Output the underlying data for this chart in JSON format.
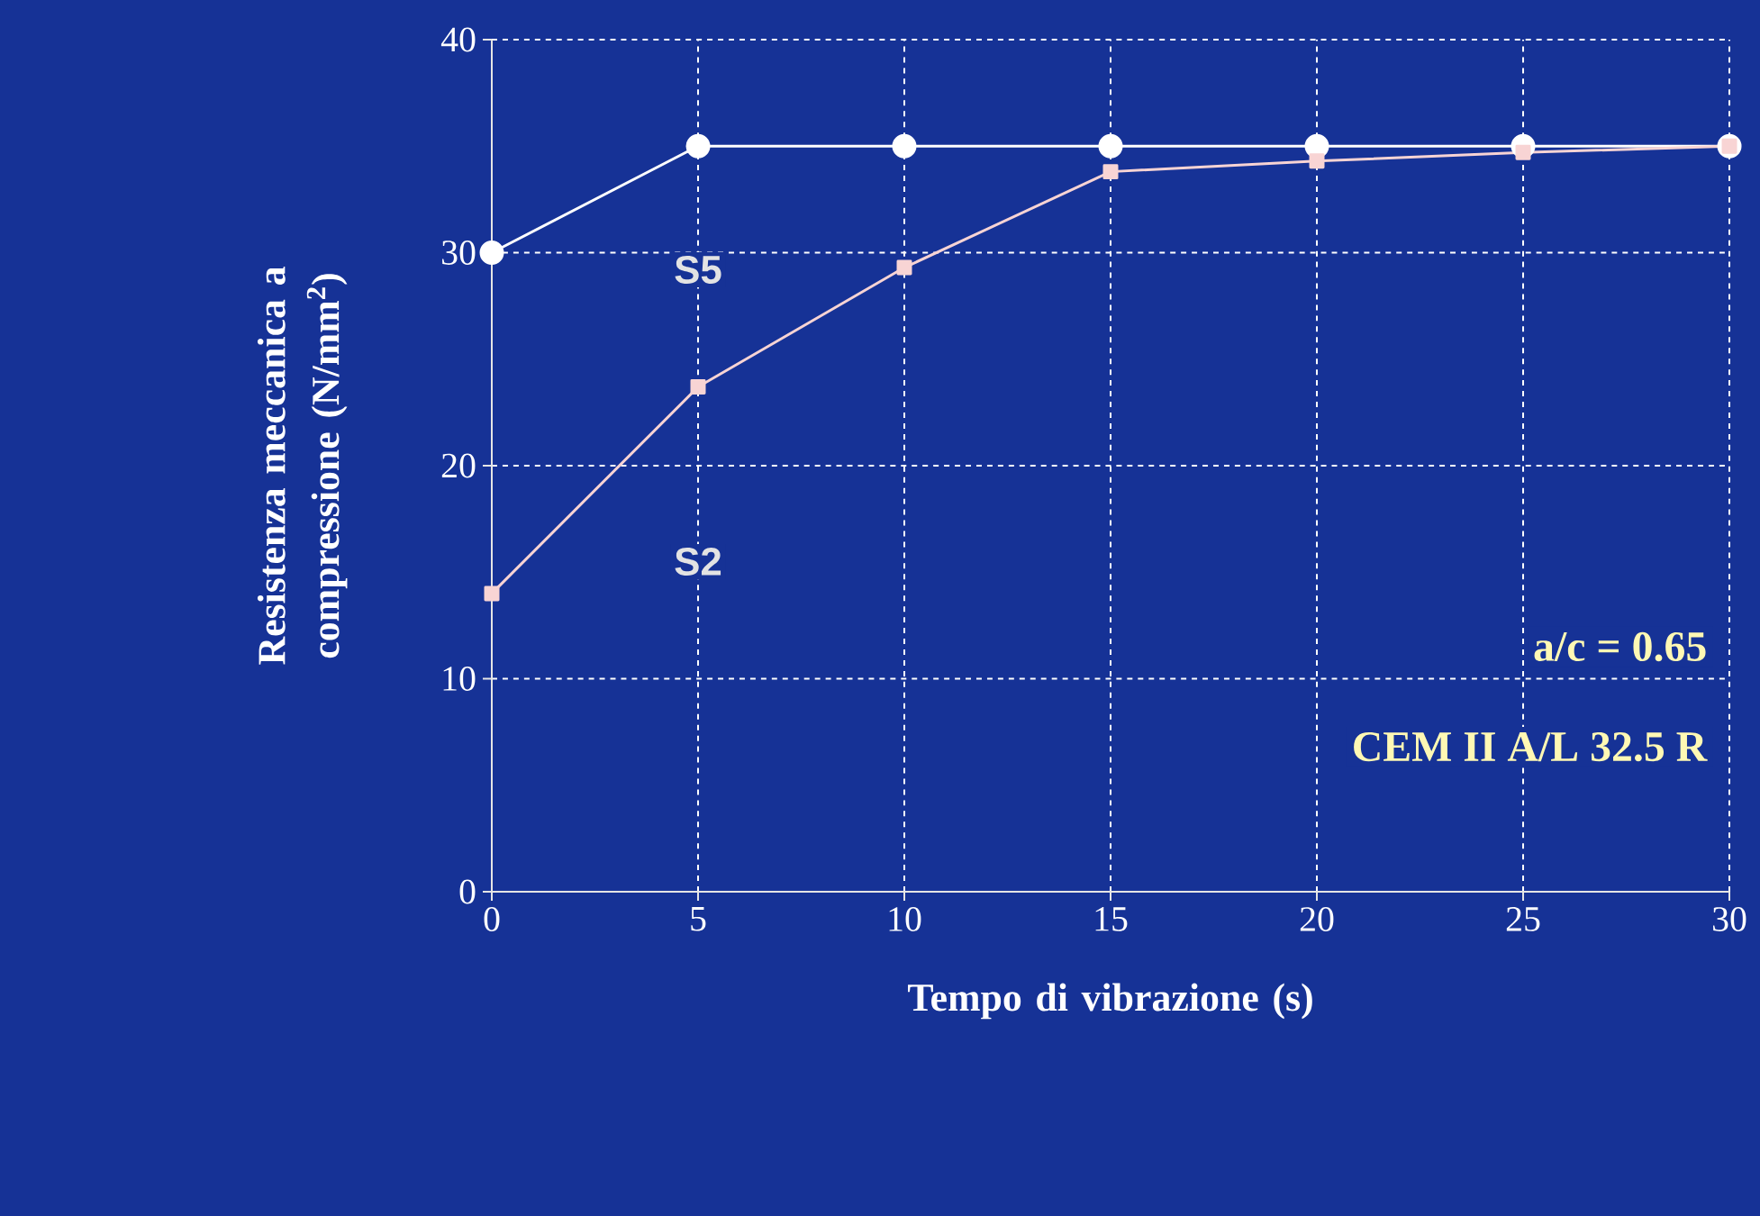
{
  "chart_data": {
    "type": "line",
    "xlabel": "Tempo di vibrazione (s)",
    "ylabel": "Resistenza meccanica a compressione (N/mm$^{2}$)",
    "x": [
      0,
      5,
      10,
      15,
      20,
      25,
      30
    ],
    "series": [
      {
        "name": "S5",
        "color": "#ffffff",
        "marker": "circle",
        "values": [
          30,
          35,
          35,
          35,
          35,
          35,
          35
        ]
      },
      {
        "name": "S2",
        "color": "#f8d4d4",
        "marker": "square",
        "values": [
          14,
          23.7,
          29.3,
          33.8,
          34.3,
          34.7,
          35
        ]
      }
    ],
    "xlim": [
      0,
      30
    ],
    "ylim": [
      0,
      40
    ],
    "xticks": [
      0,
      5,
      10,
      15,
      20,
      25,
      30
    ],
    "yticks": [
      0,
      10,
      20,
      30,
      40
    ],
    "grid": true,
    "legend": false,
    "line_style": "solid",
    "annotations": [
      "a/c = 0.65",
      "CEM II A/L  32.5 R"
    ]
  }
}
